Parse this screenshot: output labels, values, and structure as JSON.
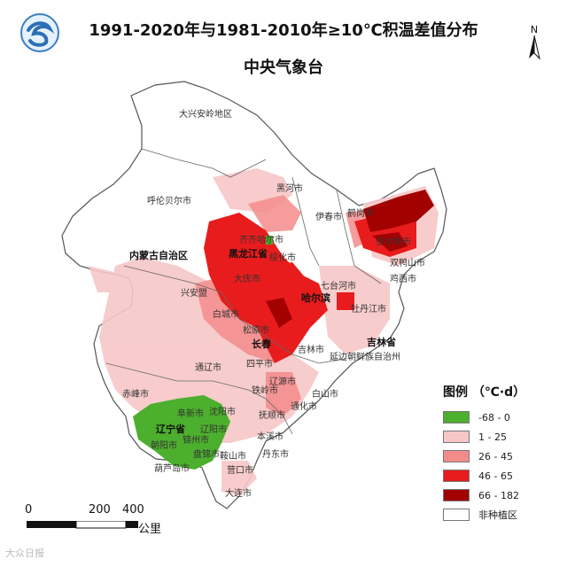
{
  "title_line1": "1991-2020年与1981-2010年≥10℃积温差值分布",
  "title_line2": "中央气象台",
  "north_label": "N",
  "legend": {
    "title": "图例 （℃·d）",
    "items": [
      {
        "label": "-68 - 0",
        "color": "#4caf2d"
      },
      {
        "label": "1 - 25",
        "color": "#f7c7c7"
      },
      {
        "label": "26 - 45",
        "color": "#f48b8b"
      },
      {
        "label": "46 - 65",
        "color": "#e81c1c"
      },
      {
        "label": "66 - 182",
        "color": "#a30000"
      },
      {
        "label": "非种植区",
        "color": "#ffffff"
      }
    ]
  },
  "scale": {
    "ticks": [
      "0",
      "200",
      "400"
    ],
    "unit": "公里"
  },
  "watermark": "大众日报",
  "places": {
    "daxinganling": "大兴安岭地区",
    "hulunbeier": "呼伦贝尔市",
    "heihe": "黑河市",
    "yichun": "伊春市",
    "hegang": "鹤岗市",
    "jiamusi": "佳木斯市",
    "shuangyashan": "双鸭山市",
    "jixi": "鸡西市",
    "qiqihar": "齐齐哈尔市",
    "suihua": "绥化市",
    "neimenggu": "内蒙古自治区",
    "heilongjiang": "黑龙江省",
    "daqing": "大庆市",
    "haerbin": "哈尔滨",
    "qitaihe": "七台河市",
    "mudanjiang": "牡丹江市",
    "xinganmeng": "兴安盟",
    "baicheng": "白城市",
    "songyuan": "松原市",
    "jilin_city": "吉林市",
    "jilin_prov": "吉林省",
    "yanbian": "延边朝鲜族自治州",
    "changchun": "长春",
    "tongliao": "通辽市",
    "siping": "四平市",
    "liaoyuan": "辽源市",
    "baishan": "白山市",
    "tonghua": "通化市",
    "chifeng": "赤峰市",
    "tieling": "铁岭市",
    "shenyang": "沈阳市",
    "fushun": "抚顺市",
    "fuxin": "阜新市",
    "liaoning": "辽宁省",
    "liaoyang": "辽阳市",
    "benxi": "本溪市",
    "chaoyang": "朝阳市",
    "jinzhou": "锦州市",
    "anshan": "鞍山市",
    "dandong": "丹东市",
    "panjin": "盘锦市",
    "yingkou": "营口市",
    "huludao": "葫芦岛市",
    "dalian": "大连市"
  }
}
